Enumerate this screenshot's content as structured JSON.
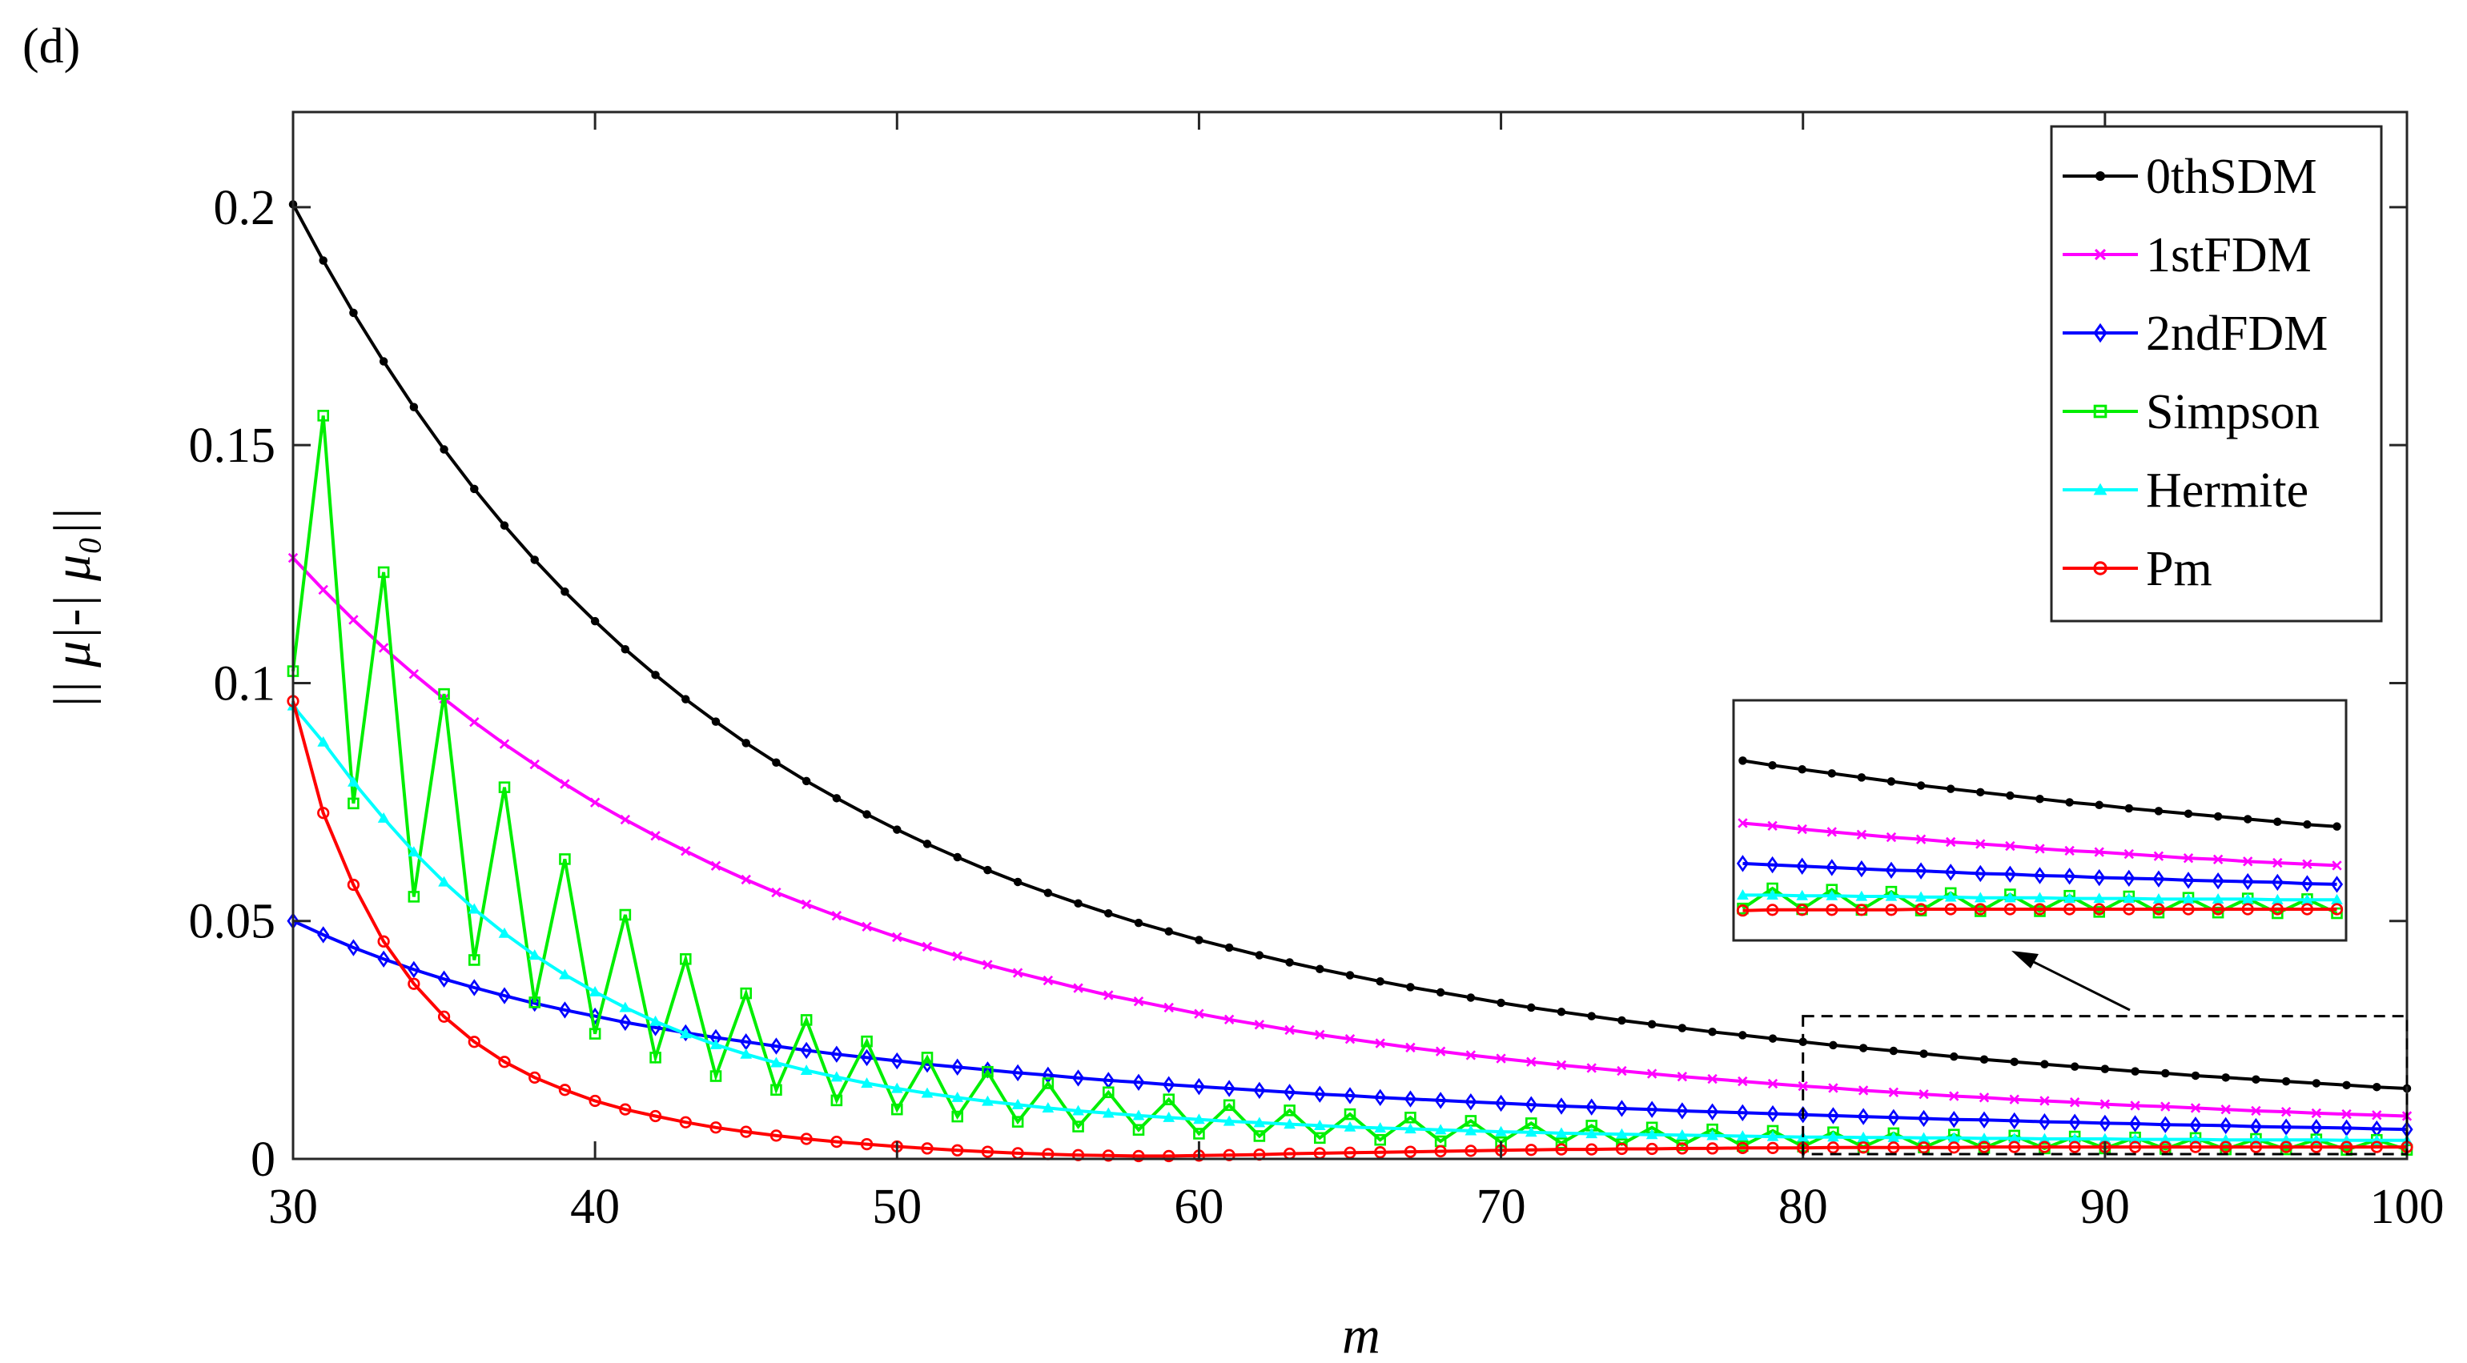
{
  "panel_label": "(d)",
  "chart_data": {
    "type": "line",
    "xlabel": "m",
    "ylabel": "|| μ|-| μ₀||",
    "xlim": [
      30,
      100
    ],
    "ylim": [
      0,
      0.22
    ],
    "xticks": [
      30,
      40,
      50,
      60,
      70,
      80,
      90,
      100
    ],
    "xtick_labels": [
      "30",
      "40",
      "50",
      "60",
      "70",
      "80",
      "90",
      "100"
    ],
    "yticks": [
      0,
      0.05,
      0.1,
      0.15,
      0.2
    ],
    "ytick_labels": [
      "0",
      "0.05",
      "0.1",
      "0.15",
      "0.2"
    ],
    "grid": false,
    "legend_position": "top-right",
    "x": [
      30,
      31,
      32,
      33,
      34,
      35,
      36,
      37,
      38,
      39,
      40,
      41,
      42,
      43,
      44,
      45,
      46,
      47,
      48,
      49,
      50,
      51,
      52,
      53,
      54,
      55,
      56,
      57,
      58,
      59,
      60,
      61,
      62,
      63,
      64,
      65,
      66,
      67,
      68,
      69,
      70,
      71,
      72,
      73,
      74,
      75,
      76,
      77,
      78,
      79,
      80,
      81,
      82,
      83,
      84,
      85,
      86,
      87,
      88,
      89,
      90,
      91,
      92,
      93,
      94,
      95,
      96,
      97,
      98,
      99,
      100
    ],
    "series": [
      {
        "name": "0thSDM",
        "color": "#000000",
        "marker": "dot",
        "values": [
          0.2006,
          0.1888,
          0.1778,
          0.1676,
          0.158,
          0.1491,
          0.1408,
          0.1331,
          0.1259,
          0.1192,
          0.113,
          0.1071,
          0.1017,
          0.0966,
          0.0919,
          0.0874,
          0.0833,
          0.0794,
          0.0758,
          0.0724,
          0.0692,
          0.0662,
          0.0634,
          0.0607,
          0.0582,
          0.0559,
          0.0537,
          0.0516,
          0.0496,
          0.0478,
          0.046,
          0.0444,
          0.0428,
          0.0413,
          0.0399,
          0.0386,
          0.0373,
          0.0361,
          0.035,
          0.0339,
          0.0328,
          0.0318,
          0.0309,
          0.03,
          0.0291,
          0.0283,
          0.0275,
          0.0267,
          0.026,
          0.0253,
          0.0246,
          0.0239,
          0.0233,
          0.0227,
          0.0221,
          0.0215,
          0.0209,
          0.0204,
          0.0199,
          0.0194,
          0.0189,
          0.0184,
          0.018,
          0.0175,
          0.0171,
          0.0167,
          0.0163,
          0.0159,
          0.0155,
          0.0151,
          0.0148
        ]
      },
      {
        "name": "1stFDM",
        "color": "#ff00ff",
        "marker": "x",
        "values": [
          0.1263,
          0.1196,
          0.1133,
          0.1074,
          0.1019,
          0.0967,
          0.0918,
          0.0872,
          0.0829,
          0.0788,
          0.0749,
          0.0713,
          0.0679,
          0.0647,
          0.0616,
          0.0587,
          0.056,
          0.0535,
          0.0511,
          0.0488,
          0.0466,
          0.0446,
          0.0426,
          0.0408,
          0.0391,
          0.0375,
          0.0359,
          0.0344,
          0.0331,
          0.0318,
          0.0305,
          0.0293,
          0.0282,
          0.0271,
          0.0261,
          0.0252,
          0.0243,
          0.0234,
          0.0226,
          0.0218,
          0.0211,
          0.0204,
          0.0197,
          0.0191,
          0.0185,
          0.0179,
          0.0173,
          0.0168,
          0.0163,
          0.0158,
          0.0153,
          0.0149,
          0.0144,
          0.014,
          0.0136,
          0.0132,
          0.0129,
          0.0125,
          0.0122,
          0.0119,
          0.0115,
          0.0112,
          0.011,
          0.0107,
          0.0104,
          0.0101,
          0.0099,
          0.0096,
          0.0094,
          0.0092,
          0.009
        ]
      },
      {
        "name": "2ndFDM",
        "color": "#0000ff",
        "marker": "diamond",
        "values": [
          0.05,
          0.0471,
          0.0444,
          0.042,
          0.0398,
          0.0378,
          0.036,
          0.0343,
          0.0327,
          0.0313,
          0.03,
          0.0287,
          0.0276,
          0.0265,
          0.0255,
          0.0246,
          0.0237,
          0.0228,
          0.022,
          0.0213,
          0.0206,
          0.0199,
          0.0193,
          0.0187,
          0.0181,
          0.0176,
          0.017,
          0.0165,
          0.0161,
          0.0156,
          0.0152,
          0.0148,
          0.0144,
          0.014,
          0.0136,
          0.0133,
          0.0129,
          0.0126,
          0.0123,
          0.012,
          0.0117,
          0.0114,
          0.0111,
          0.0109,
          0.0106,
          0.0104,
          0.0101,
          0.0099,
          0.0097,
          0.0095,
          0.0093,
          0.0091,
          0.0089,
          0.0087,
          0.0085,
          0.0083,
          0.0082,
          0.008,
          0.0078,
          0.0077,
          0.0075,
          0.0074,
          0.0072,
          0.0071,
          0.007,
          0.0068,
          0.0067,
          0.0066,
          0.0065,
          0.0063,
          0.0062
        ]
      },
      {
        "name": "Simpson",
        "color": "#00ee00",
        "marker": "square",
        "values": [
          0.1025,
          0.1562,
          0.0747,
          0.1233,
          0.0551,
          0.0977,
          0.0418,
          0.0781,
          0.0329,
          0.063,
          0.0263,
          0.0513,
          0.0213,
          0.042,
          0.0174,
          0.0348,
          0.0145,
          0.0292,
          0.0123,
          0.0247,
          0.0104,
          0.0213,
          0.0089,
          0.0183,
          0.0078,
          0.0159,
          0.0068,
          0.014,
          0.0061,
          0.0125,
          0.0053,
          0.0113,
          0.0048,
          0.0102,
          0.0044,
          0.0094,
          0.004,
          0.0087,
          0.0037,
          0.008,
          0.0035,
          0.0075,
          0.0033,
          0.007,
          0.0031,
          0.0066,
          0.0029,
          0.0062,
          0.0027,
          0.0059,
          0.0026,
          0.0056,
          0.0025,
          0.0054,
          0.0024,
          0.0051,
          0.0023,
          0.0049,
          0.0022,
          0.0047,
          0.0022,
          0.0045,
          0.0021,
          0.0044,
          0.002,
          0.0042,
          0.002,
          0.0041,
          0.0019,
          0.004,
          0.0019
        ]
      },
      {
        "name": "Hermite",
        "color": "#00ffff",
        "marker": "triangle",
        "values": [
          0.0952,
          0.0876,
          0.0792,
          0.0716,
          0.0645,
          0.0582,
          0.0525,
          0.0474,
          0.0428,
          0.0387,
          0.0351,
          0.0318,
          0.0289,
          0.0263,
          0.024,
          0.022,
          0.0202,
          0.0186,
          0.0172,
          0.0159,
          0.0148,
          0.0138,
          0.0129,
          0.0121,
          0.0114,
          0.0107,
          0.0101,
          0.0096,
          0.0091,
          0.0087,
          0.0083,
          0.0079,
          0.0076,
          0.0073,
          0.007,
          0.0067,
          0.0065,
          0.0063,
          0.0061,
          0.0059,
          0.0057,
          0.0056,
          0.0054,
          0.0053,
          0.0052,
          0.0051,
          0.005,
          0.0049,
          0.0048,
          0.0047,
          0.0046,
          0.0046,
          0.0045,
          0.0045,
          0.0044,
          0.0044,
          0.0043,
          0.0043,
          0.0042,
          0.0042,
          0.0042,
          0.0041,
          0.0041,
          0.0041,
          0.004,
          0.004,
          0.004,
          0.004,
          0.0039,
          0.0039,
          0.0039
        ]
      },
      {
        "name": "Pm",
        "color": "#ff0000",
        "marker": "circle",
        "values": [
          0.0962,
          0.0727,
          0.0576,
          0.0457,
          0.0368,
          0.0299,
          0.0246,
          0.0204,
          0.0171,
          0.0145,
          0.0122,
          0.0104,
          0.009,
          0.0077,
          0.0066,
          0.0057,
          0.0049,
          0.0042,
          0.0036,
          0.0031,
          0.0026,
          0.0022,
          0.0018,
          0.0015,
          0.0012,
          0.001,
          0.0008,
          0.0007,
          0.0006,
          0.0006,
          0.0007,
          0.0008,
          0.0009,
          0.0011,
          0.0012,
          0.0013,
          0.0014,
          0.0015,
          0.0016,
          0.0017,
          0.0018,
          0.0019,
          0.002,
          0.002,
          0.0021,
          0.0021,
          0.0022,
          0.0022,
          0.0023,
          0.0023,
          0.0023,
          0.0024,
          0.0024,
          0.0024,
          0.0024,
          0.0024,
          0.0025,
          0.0025,
          0.0025,
          0.0025,
          0.0025,
          0.0025,
          0.0025,
          0.0025,
          0.0025,
          0.0025,
          0.0025,
          0.0025,
          0.0025,
          0.0025,
          0.0025
        ]
      }
    ],
    "zoom_region": {
      "x_range": [
        80,
        100
      ],
      "y_range": [
        0,
        0.03
      ]
    }
  }
}
